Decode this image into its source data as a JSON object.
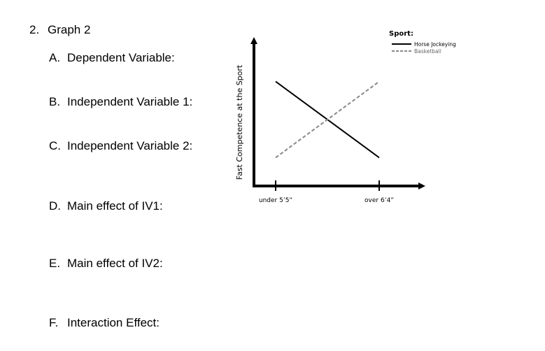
{
  "question": {
    "number": "2.",
    "title": "Graph 2"
  },
  "items": [
    {
      "letter": "A.",
      "label": "Dependent Variable:"
    },
    {
      "letter": "B.",
      "label": "Independent Variable 1:"
    },
    {
      "letter": "C.",
      "label": "Independent Variable 2:"
    },
    {
      "letter": "D.",
      "label": "Main effect of IV1:"
    },
    {
      "letter": "E.",
      "label": "Main effect of IV2:"
    },
    {
      "letter": "F.",
      "label": "Interaction Effect:"
    }
  ],
  "chart_data": {
    "type": "line",
    "title": "",
    "xlabel": "",
    "ylabel": "Fast Competence at the Sport",
    "categories": [
      "under 5’5”",
      "over 6’4”"
    ],
    "legend_title": "Sport:",
    "legend_position": "top-right",
    "grid": false,
    "ylim": [
      0,
      10
    ],
    "series": [
      {
        "name": "Horse Jockeying",
        "style": "solid",
        "color": "#000000",
        "values": [
          9,
          1
        ]
      },
      {
        "name": "Basketball",
        "style": "dashed",
        "color": "#888888",
        "values": [
          1,
          9
        ]
      }
    ]
  }
}
